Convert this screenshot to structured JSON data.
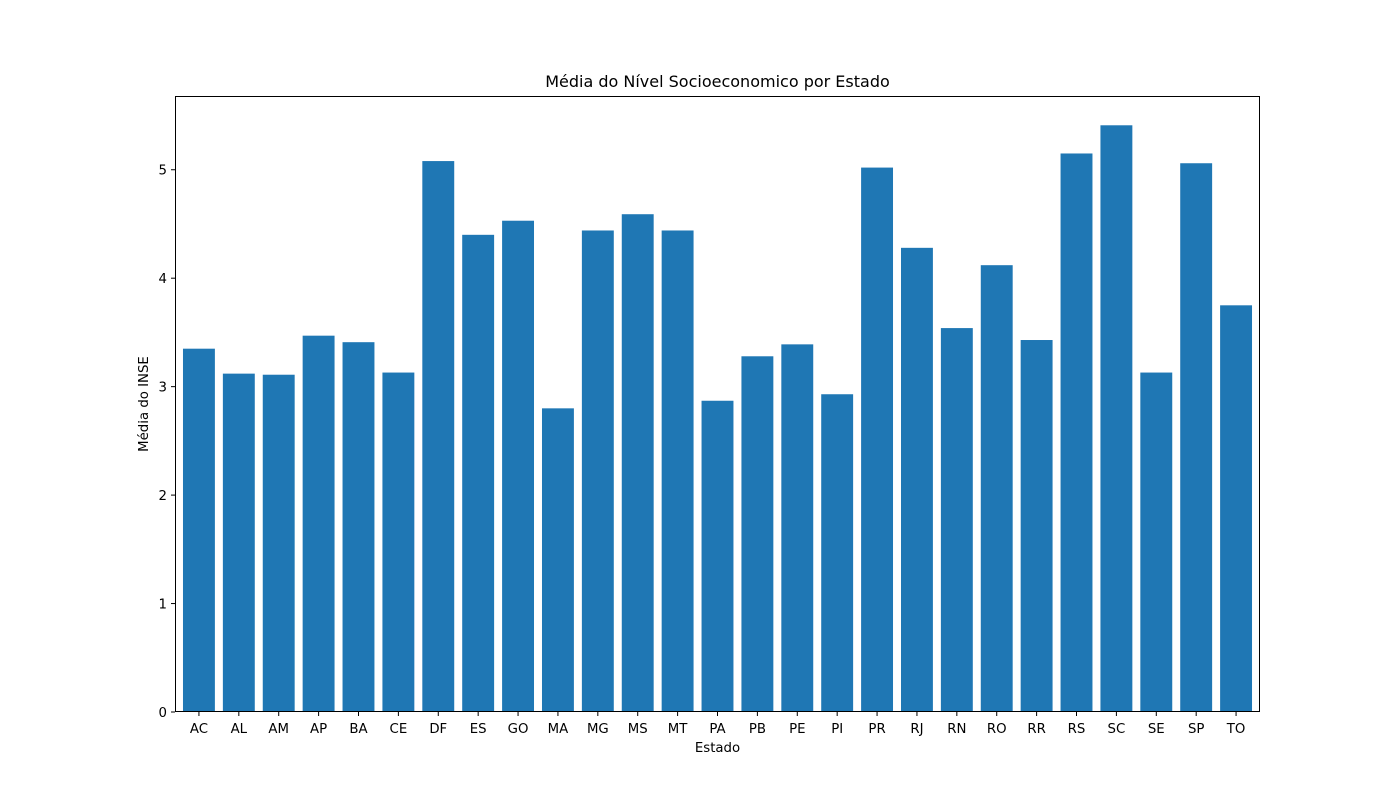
{
  "chart_data": {
    "type": "bar",
    "title": "Média do Nível Socioeconomico por Estado",
    "xlabel": "Estado",
    "ylabel": "Média do INSE",
    "categories": [
      "AC",
      "AL",
      "AM",
      "AP",
      "BA",
      "CE",
      "DF",
      "ES",
      "GO",
      "MA",
      "MG",
      "MS",
      "MT",
      "PA",
      "PB",
      "PE",
      "PI",
      "PR",
      "RJ",
      "RN",
      "RO",
      "RR",
      "RS",
      "SC",
      "SE",
      "SP",
      "TO"
    ],
    "values": [
      3.35,
      3.12,
      3.11,
      3.47,
      3.41,
      3.13,
      5.08,
      4.4,
      4.53,
      2.8,
      4.44,
      4.59,
      4.44,
      2.87,
      3.28,
      3.39,
      2.93,
      5.02,
      4.28,
      3.54,
      4.12,
      3.43,
      5.15,
      5.41,
      3.13,
      5.06,
      3.75
    ],
    "ylim": [
      0,
      5.68
    ],
    "yticks": [
      0,
      1,
      2,
      3,
      4,
      5
    ],
    "grid": false,
    "legend": "none",
    "bar_color": "#1f77b4"
  }
}
